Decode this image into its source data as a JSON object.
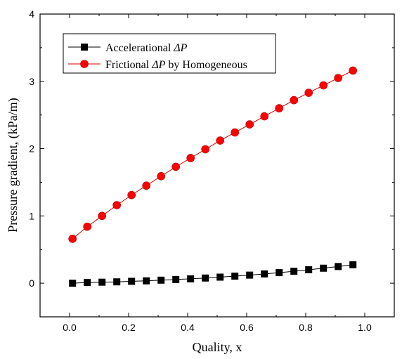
{
  "chart_data": {
    "type": "line",
    "title": "",
    "xlabel": "Quality, x",
    "ylabel": "Pressure gradient, (kPa/m)",
    "xlim": [
      -0.1,
      1.1
    ],
    "ylim": [
      -0.5,
      4
    ],
    "xticks": [
      "0.0",
      "0.2",
      "0.4",
      "0.6",
      "0.8",
      "1.0"
    ],
    "yticks": [
      "0",
      "1",
      "2",
      "3",
      "4"
    ],
    "grid": false,
    "legend_position": "top-left",
    "x": [
      0.01,
      0.06,
      0.11,
      0.16,
      0.21,
      0.26,
      0.31,
      0.36,
      0.41,
      0.46,
      0.51,
      0.56,
      0.61,
      0.66,
      0.71,
      0.76,
      0.81,
      0.86,
      0.91,
      0.96
    ],
    "series": [
      {
        "name": "Accelerational ΔP",
        "name_prefix": "Accelerational ",
        "name_symbol": "ΔP",
        "marker": "square",
        "color": "#000000",
        "marker_fill": "#000000",
        "values": [
          0.0,
          0.01,
          0.015,
          0.02,
          0.028,
          0.035,
          0.045,
          0.055,
          0.065,
          0.077,
          0.09,
          0.105,
          0.12,
          0.138,
          0.157,
          0.177,
          0.2,
          0.223,
          0.248,
          0.275
        ]
      },
      {
        "name": "Frictional ΔP by Homogeneous",
        "name_prefix": "Frictional ",
        "name_symbol": "ΔP",
        "name_suffix": " by Homogeneous",
        "marker": "circle",
        "color": "#cc0000",
        "marker_fill": "#ff0000",
        "values": [
          0.66,
          0.84,
          1.0,
          1.16,
          1.31,
          1.45,
          1.59,
          1.73,
          1.86,
          1.99,
          2.12,
          2.24,
          2.36,
          2.48,
          2.6,
          2.72,
          2.83,
          2.94,
          3.05,
          3.16
        ]
      }
    ]
  }
}
